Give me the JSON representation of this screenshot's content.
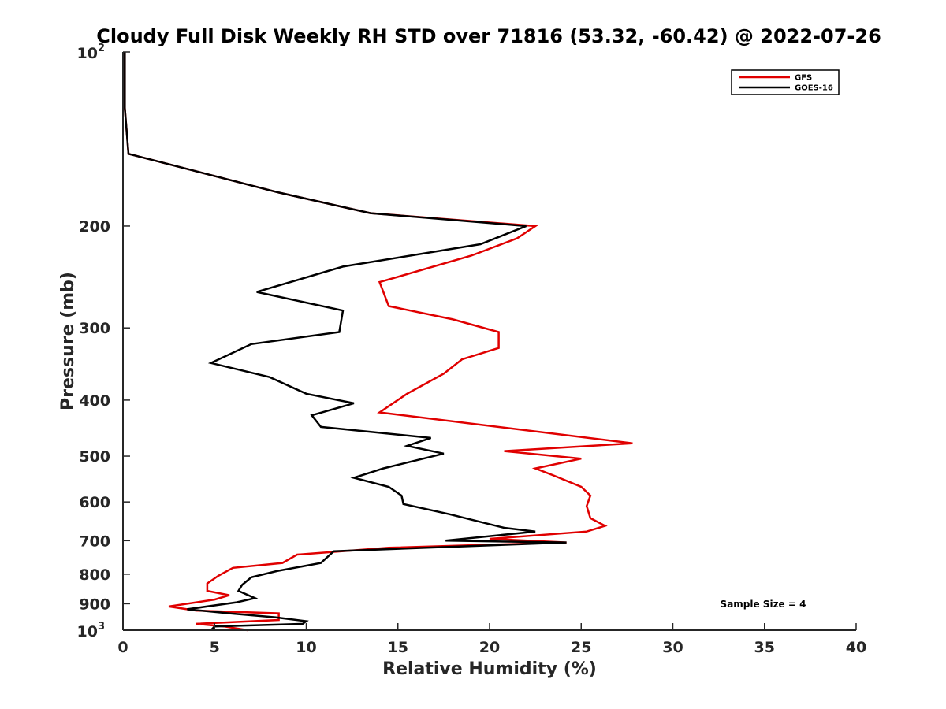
{
  "chart_data": {
    "type": "line",
    "title": "Cloudy Full Disk Weekly RH STD over 71816 (53.32, -60.42) @ 2022-07-26",
    "xlabel": "Relative Humidity (%)",
    "ylabel": "Pressure (mb)",
    "xlim": [
      0,
      40
    ],
    "ylim": [
      100,
      1000
    ],
    "y_scale": "log",
    "y_reversed": true,
    "grid": false,
    "legend_position": "top-right",
    "x_ticks": [
      "0",
      "5",
      "10",
      "15",
      "20",
      "25",
      "30",
      "35",
      "40"
    ],
    "y_ticks": [
      {
        "value": 100,
        "base": "10",
        "exp": "2"
      },
      {
        "value": 200,
        "label": "200"
      },
      {
        "value": 300,
        "label": "300"
      },
      {
        "value": 400,
        "label": "400"
      },
      {
        "value": 500,
        "label": "500"
      },
      {
        "value": 600,
        "label": "600"
      },
      {
        "value": 700,
        "label": "700"
      },
      {
        "value": 800,
        "label": "800"
      },
      {
        "value": 900,
        "label": "900"
      },
      {
        "value": 1000,
        "base": "10",
        "exp": "3"
      }
    ],
    "annotation": "Sample Size = 4",
    "series": [
      {
        "name": "GFS",
        "color": "#e00000",
        "points": [
          [
            0.1,
            100
          ],
          [
            0.1,
            125
          ],
          [
            0.3,
            150
          ],
          [
            8.5,
            175
          ],
          [
            13.5,
            190
          ],
          [
            22.5,
            200
          ],
          [
            21.5,
            210
          ],
          [
            19,
            225
          ],
          [
            14,
            250
          ],
          [
            14.5,
            275
          ],
          [
            18,
            290
          ],
          [
            20.5,
            305
          ],
          [
            20.5,
            325
          ],
          [
            18.5,
            340
          ],
          [
            17.5,
            360
          ],
          [
            15.5,
            390
          ],
          [
            14,
            420
          ],
          [
            27.8,
            475
          ],
          [
            20.8,
            490
          ],
          [
            25,
            505
          ],
          [
            22.5,
            525
          ],
          [
            23.5,
            540
          ],
          [
            25,
            565
          ],
          [
            25.5,
            585
          ],
          [
            25.3,
            610
          ],
          [
            25.5,
            640
          ],
          [
            26.3,
            660
          ],
          [
            25.3,
            675
          ],
          [
            20,
            695
          ],
          [
            24.2,
            705
          ],
          [
            14.5,
            720
          ],
          [
            9.5,
            740
          ],
          [
            8.7,
            765
          ],
          [
            6,
            780
          ],
          [
            5.2,
            805
          ],
          [
            4.6,
            830
          ],
          [
            4.6,
            855
          ],
          [
            5.8,
            870
          ],
          [
            5,
            885
          ],
          [
            2.5,
            910
          ],
          [
            4,
            925
          ],
          [
            8.5,
            935
          ],
          [
            8.5,
            960
          ],
          [
            4,
            975
          ],
          [
            5.5,
            985
          ],
          [
            6.8,
            1000
          ]
        ]
      },
      {
        "name": "GOES-16",
        "color": "#000000",
        "points": [
          [
            0.1,
            100
          ],
          [
            0.1,
            125
          ],
          [
            0.3,
            150
          ],
          [
            8.5,
            175
          ],
          [
            13.5,
            190
          ],
          [
            22,
            200
          ],
          [
            19.5,
            215
          ],
          [
            12,
            235
          ],
          [
            7.3,
            260
          ],
          [
            12,
            280
          ],
          [
            11.8,
            305
          ],
          [
            7,
            320
          ],
          [
            4.8,
            345
          ],
          [
            8,
            365
          ],
          [
            10,
            390
          ],
          [
            12.6,
            405
          ],
          [
            10.3,
            425
          ],
          [
            10.8,
            445
          ],
          [
            16.8,
            465
          ],
          [
            15.5,
            480
          ],
          [
            17.5,
            495
          ],
          [
            14.2,
            525
          ],
          [
            12.6,
            545
          ],
          [
            14.5,
            565
          ],
          [
            15.2,
            585
          ],
          [
            15.3,
            605
          ],
          [
            17.8,
            630
          ],
          [
            20.8,
            665
          ],
          [
            22.5,
            675
          ],
          [
            17.6,
            700
          ],
          [
            24.2,
            705
          ],
          [
            11.5,
            730
          ],
          [
            10.8,
            765
          ],
          [
            8.4,
            790
          ],
          [
            7,
            810
          ],
          [
            6.5,
            835
          ],
          [
            6.3,
            855
          ],
          [
            7.2,
            880
          ],
          [
            6.2,
            895
          ],
          [
            3.5,
            920
          ],
          [
            5.8,
            935
          ],
          [
            8.3,
            950
          ],
          [
            10,
            965
          ],
          [
            9.8,
            975
          ],
          [
            5,
            985
          ],
          [
            4.8,
            1000
          ]
        ]
      }
    ]
  }
}
